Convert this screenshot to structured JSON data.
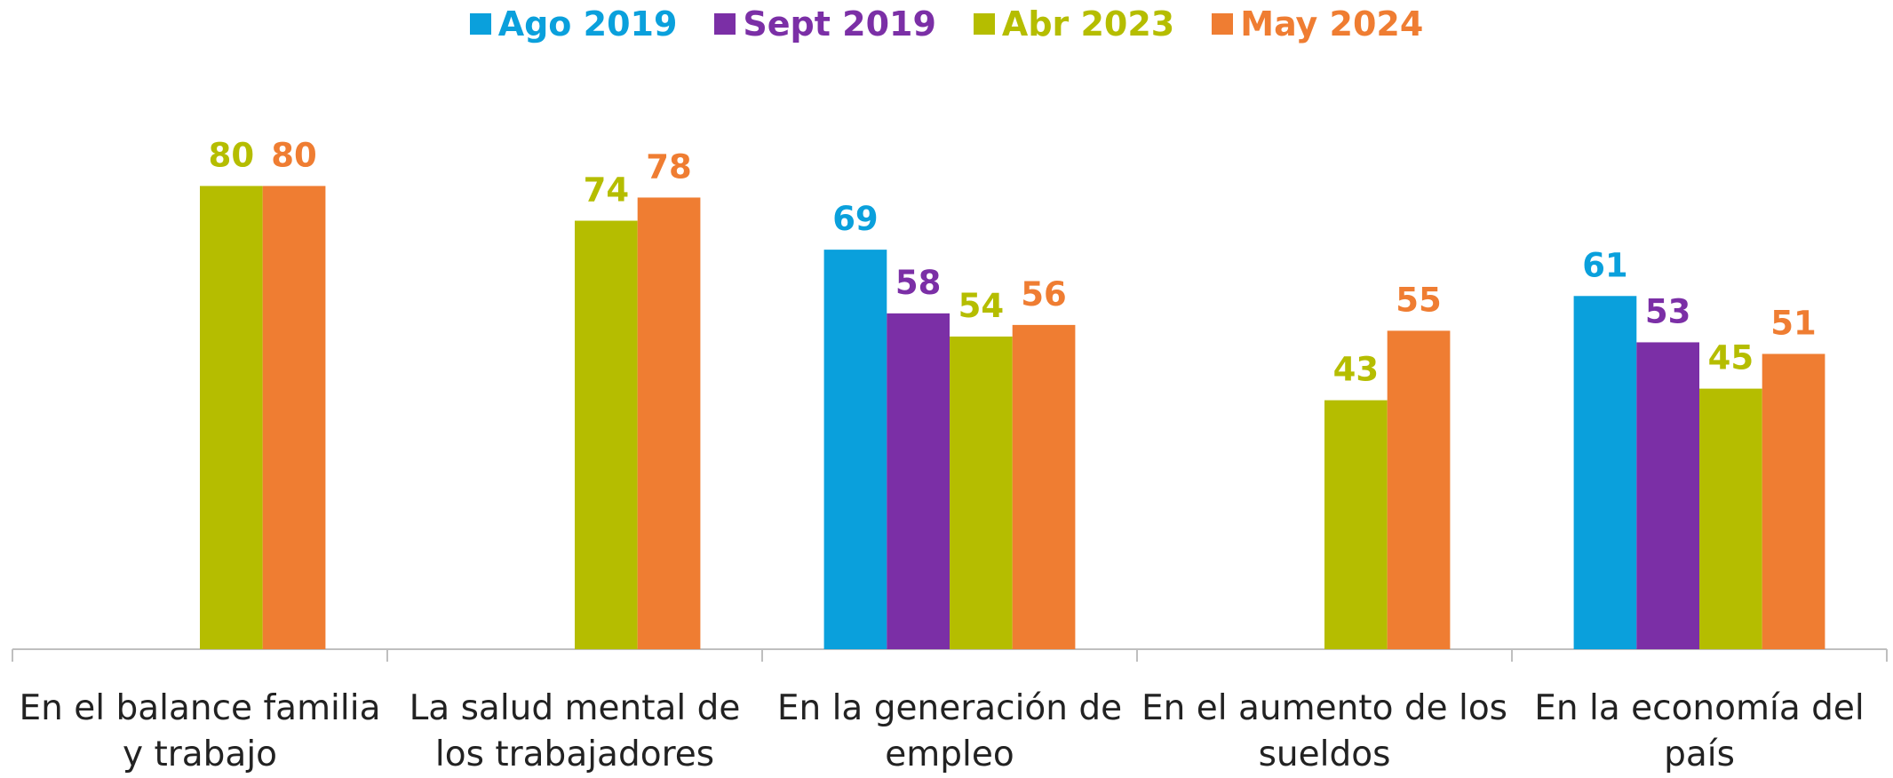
{
  "chart_data": {
    "type": "bar",
    "categories": [
      "En el balance familia y trabajo",
      "La salud mental de los trabajadores",
      "En la generación de empleo",
      "En el aumento de los sueldos",
      "En la economía del país"
    ],
    "series": [
      {
        "name": "Ago 2019",
        "color": "#0aa0dc",
        "values": [
          null,
          null,
          69,
          null,
          61
        ]
      },
      {
        "name": "Sept 2019",
        "color": "#7b2fa6",
        "values": [
          null,
          null,
          58,
          null,
          53
        ]
      },
      {
        "name": "Abr 2023",
        "color": "#b5bd00",
        "values": [
          80,
          74,
          54,
          43,
          45
        ]
      },
      {
        "name": "May 2024",
        "color": "#ef7d32",
        "values": [
          80,
          78,
          56,
          55,
          51
        ]
      }
    ],
    "legend": "top"
  }
}
